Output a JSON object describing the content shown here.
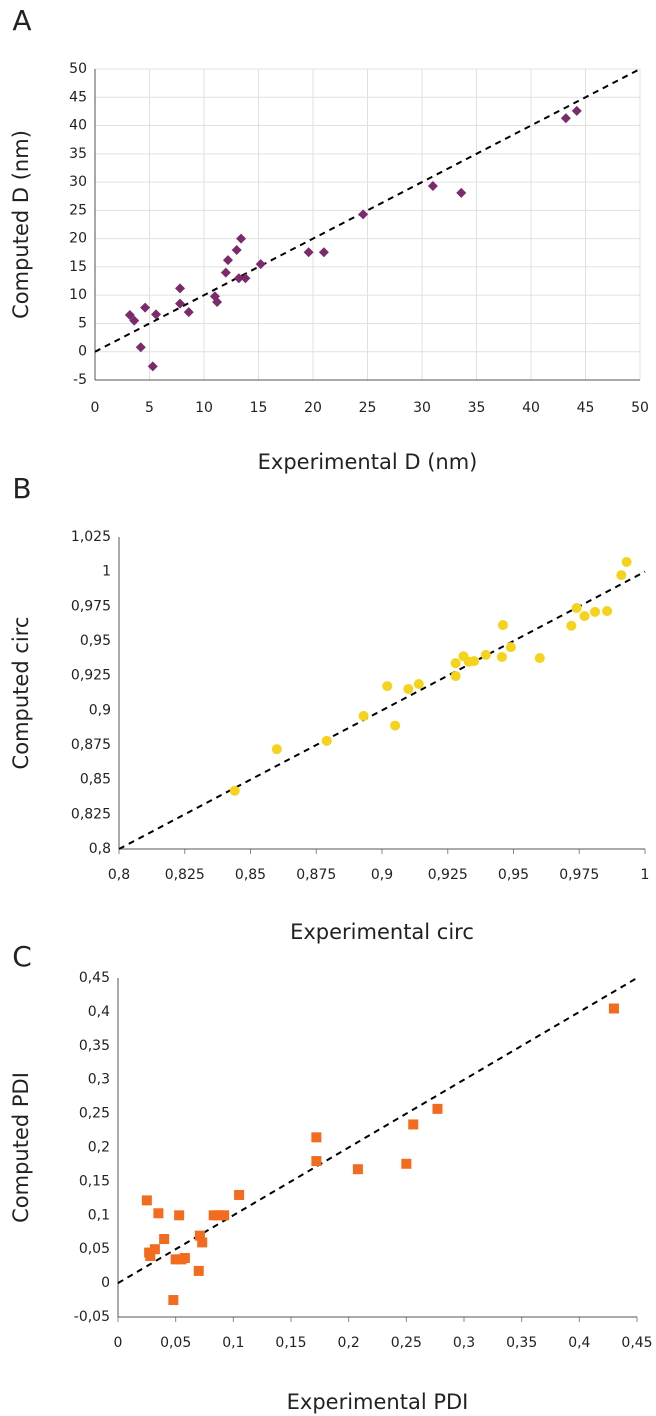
{
  "chart_data": [
    {
      "type": "scatter",
      "panel": "A",
      "x_label": "Experimental D (nm)",
      "y_label": "Computed D (nm)",
      "marker": "diamond",
      "color": "#7b2b6b",
      "grid": true,
      "identity_line": true,
      "xlim": [
        0,
        50
      ],
      "ylim": [
        -5,
        50
      ],
      "xticks": [
        0,
        5,
        10,
        15,
        20,
        25,
        30,
        35,
        40,
        45,
        50
      ],
      "yticks": [
        -5,
        0,
        5,
        10,
        15,
        20,
        25,
        30,
        35,
        40,
        45,
        50
      ],
      "x": [
        3.2,
        3.6,
        4.2,
        4.6,
        5.3,
        5.6,
        7.8,
        7.8,
        8.6,
        11,
        11.2,
        12,
        12.2,
        13,
        13.2,
        13.4,
        13.8,
        15.2,
        19.6,
        21,
        24.6,
        31,
        33.6,
        43.2,
        44.2
      ],
      "values": [
        6.5,
        5.5,
        0.8,
        7.8,
        -2.6,
        6.6,
        11.2,
        8.5,
        7,
        9.8,
        8.8,
        14,
        16.2,
        18,
        13,
        20,
        13,
        15.5,
        17.6,
        17.6,
        24.3,
        29.3,
        28.1,
        41.3,
        42.6
      ]
    },
    {
      "type": "scatter",
      "panel": "B",
      "x_label": "Experimental circ",
      "y_label": "Computed circ",
      "marker": "circle",
      "color": "#f5d31c",
      "grid": false,
      "identity_line": true,
      "xlim": [
        0.8,
        1
      ],
      "ylim": [
        0.8,
        1.025
      ],
      "xticks": [
        {
          "value": 0.8,
          "label": "0,8"
        },
        {
          "value": 0.825,
          "label": "0,825"
        },
        {
          "value": 0.85,
          "label": "0,85"
        },
        {
          "value": 0.875,
          "label": "0,875"
        },
        {
          "value": 0.9,
          "label": "0,9"
        },
        {
          "value": 0.925,
          "label": "0,925"
        },
        {
          "value": 0.95,
          "label": "0,95"
        },
        {
          "value": 0.975,
          "label": "0,975"
        },
        1
      ],
      "yticks": [
        {
          "value": 0.8,
          "label": "0,8"
        },
        {
          "value": 0.825,
          "label": "0,825"
        },
        {
          "value": 0.85,
          "label": "0,85"
        },
        {
          "value": 0.875,
          "label": "0,875"
        },
        {
          "value": 0.9,
          "label": "0,9"
        },
        {
          "value": 0.925,
          "label": "0,925"
        },
        {
          "value": 0.95,
          "label": "0,95"
        },
        {
          "value": 0.975,
          "label": "0,975"
        },
        1,
        {
          "value": 1.025,
          "label": "1,025"
        }
      ],
      "x": [
        0.844,
        0.86,
        0.879,
        0.893,
        0.902,
        0.905,
        0.91,
        0.914,
        0.928,
        0.928,
        0.931,
        0.933,
        0.935,
        0.9395,
        0.9456,
        0.946,
        0.949,
        0.96,
        0.972,
        0.974,
        0.977,
        0.981,
        0.9856,
        0.991,
        0.993
      ],
      "values": [
        0.842,
        0.872,
        0.878,
        0.896,
        0.9175,
        0.889,
        0.9154,
        0.919,
        0.9247,
        0.934,
        0.939,
        0.935,
        0.9355,
        0.94,
        0.9385,
        0.9615,
        0.9456,
        0.9377,
        0.961,
        0.9738,
        0.968,
        0.971,
        0.9716,
        0.9975,
        1.007
      ]
    },
    {
      "type": "scatter",
      "panel": "C",
      "x_label": "Experimental PDI",
      "y_label": "Computed PDI",
      "marker": "square",
      "color": "#f26b1f",
      "grid": false,
      "identity_line": true,
      "xlim": [
        0,
        0.45
      ],
      "ylim": [
        -0.05,
        0.45
      ],
      "xticks": [
        0,
        {
          "value": 0.05,
          "label": "0,05"
        },
        {
          "value": 0.1,
          "label": "0,1"
        },
        {
          "value": 0.15,
          "label": "0,15"
        },
        {
          "value": 0.2,
          "label": "0,2"
        },
        {
          "value": 0.25,
          "label": "0,25"
        },
        {
          "value": 0.3,
          "label": "0,3"
        },
        {
          "value": 0.35,
          "label": "0,35"
        },
        {
          "value": 0.4,
          "label": "0,4"
        },
        {
          "value": 0.45,
          "label": "0,45"
        }
      ],
      "yticks": [
        {
          "value": -0.05,
          "label": "-0,05"
        },
        0,
        {
          "value": 0.05,
          "label": "0,05"
        },
        {
          "value": 0.1,
          "label": "0,1"
        },
        {
          "value": 0.15,
          "label": "0,15"
        },
        {
          "value": 0.2,
          "label": "0,2"
        },
        {
          "value": 0.25,
          "label": "0,25"
        },
        {
          "value": 0.3,
          "label": "0,3"
        },
        {
          "value": 0.35,
          "label": "0,35"
        },
        {
          "value": 0.4,
          "label": "0,4"
        },
        {
          "value": 0.45,
          "label": "0,45"
        }
      ],
      "x": [
        0.025,
        0.027,
        0.028,
        0.032,
        0.035,
        0.04,
        0.048,
        0.05,
        0.053,
        0.055,
        0.058,
        0.07,
        0.071,
        0.073,
        0.083,
        0.087,
        0.092,
        0.105,
        0.172,
        0.172,
        0.208,
        0.25,
        0.256,
        0.277,
        0.43
      ],
      "values": [
        0.122,
        0.045,
        0.04,
        0.05,
        0.103,
        0.065,
        -0.025,
        0.035,
        0.1,
        0.035,
        0.037,
        0.018,
        0.07,
        0.06,
        0.1,
        0.1,
        0.1,
        0.13,
        0.215,
        0.18,
        0.168,
        0.176,
        0.234,
        0.257,
        0.405
      ]
    }
  ]
}
